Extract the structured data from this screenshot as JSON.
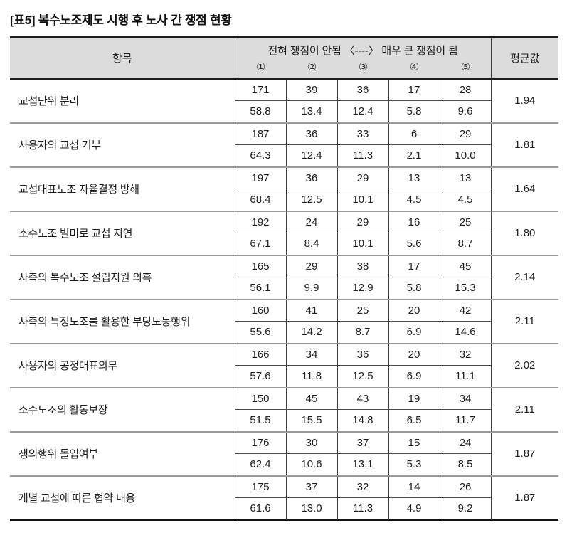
{
  "title": "[표5] 복수노조제도 시행 후 노사 간 쟁점 현황",
  "colors": {
    "header_bg": "#dcdcdc",
    "heavy_border": "#1c1c1c",
    "group_divider": "#999999",
    "cell_border": "#3c3c3c",
    "text": "#1e1e1e"
  },
  "table": {
    "header": {
      "item_col": "항목",
      "scale_label": "전혀 쟁점이 안됨 〈----〉 매우 큰 쟁점이 됨",
      "scale_points": [
        "①",
        "②",
        "③",
        "④",
        "⑤"
      ],
      "avg_col": "평균값"
    },
    "rows": [
      {
        "item": "교섭단위 분리",
        "counts": [
          "171",
          "39",
          "36",
          "17",
          "28"
        ],
        "percents": [
          "58.8",
          "13.4",
          "12.4",
          "5.8",
          "9.6"
        ],
        "mean": "1.94"
      },
      {
        "item": "사용자의 교섭 거부",
        "counts": [
          "187",
          "36",
          "33",
          "6",
          "29"
        ],
        "percents": [
          "64.3",
          "12.4",
          "11.3",
          "2.1",
          "10.0"
        ],
        "mean": "1.81"
      },
      {
        "item": "교섭대표노조 자율결정 방해",
        "counts": [
          "197",
          "36",
          "29",
          "13",
          "13"
        ],
        "percents": [
          "68.4",
          "12.5",
          "10.1",
          "4.5",
          "4.5"
        ],
        "mean": "1.64"
      },
      {
        "item": "소수노조 빌미로 교섭 지연",
        "counts": [
          "192",
          "24",
          "29",
          "16",
          "25"
        ],
        "percents": [
          "67.1",
          "8.4",
          "10.1",
          "5.6",
          "8.7"
        ],
        "mean": "1.80"
      },
      {
        "item": "사측의 복수노조 설립지원 의혹",
        "counts": [
          "165",
          "29",
          "38",
          "17",
          "45"
        ],
        "percents": [
          "56.1",
          "9.9",
          "12.9",
          "5.8",
          "15.3"
        ],
        "mean": "2.14"
      },
      {
        "item": "사측의 특정노조를 활용한 부당노동행위",
        "counts": [
          "160",
          "41",
          "25",
          "20",
          "42"
        ],
        "percents": [
          "55.6",
          "14.2",
          "8.7",
          "6.9",
          "14.6"
        ],
        "mean": "2.11"
      },
      {
        "item": "사용자의 공정대표의무",
        "counts": [
          "166",
          "34",
          "36",
          "20",
          "32"
        ],
        "percents": [
          "57.6",
          "11.8",
          "12.5",
          "6.9",
          "11.1"
        ],
        "mean": "2.02"
      },
      {
        "item": "소수노조의 활동보장",
        "counts": [
          "150",
          "45",
          "43",
          "19",
          "34"
        ],
        "percents": [
          "51.5",
          "15.5",
          "14.8",
          "6.5",
          "11.7"
        ],
        "mean": "2.11"
      },
      {
        "item": "쟁의행위 돌입여부",
        "counts": [
          "176",
          "30",
          "37",
          "15",
          "24"
        ],
        "percents": [
          "62.4",
          "10.6",
          "13.1",
          "5.3",
          "8.5"
        ],
        "mean": "1.87"
      },
      {
        "item": "개별 교섭에 따른 협약 내용",
        "counts": [
          "175",
          "37",
          "32",
          "14",
          "26"
        ],
        "percents": [
          "61.6",
          "13.0",
          "11.3",
          "4.9",
          "9.2"
        ],
        "mean": "1.87"
      }
    ]
  }
}
